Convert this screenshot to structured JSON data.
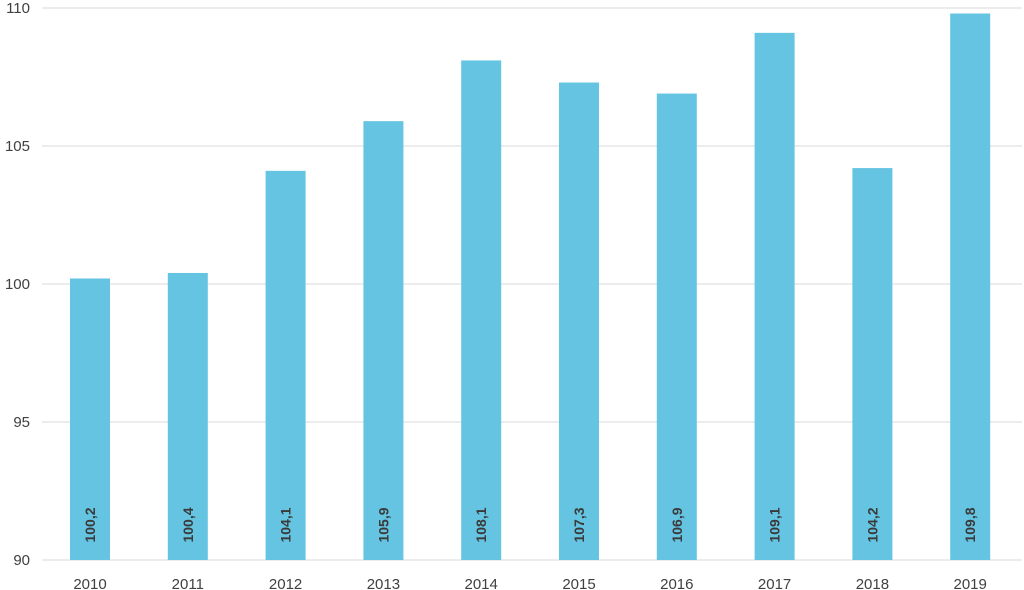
{
  "chart_data": {
    "type": "bar",
    "title": "",
    "xlabel": "",
    "ylabel": "",
    "categories": [
      "2010",
      "2011",
      "2012",
      "2013",
      "2014",
      "2015",
      "2016",
      "2017",
      "2018",
      "2019"
    ],
    "values": [
      100.2,
      100.4,
      104.1,
      105.9,
      108.1,
      107.3,
      106.9,
      109.1,
      104.2,
      109.8
    ],
    "data_labels": [
      "100,2",
      "100,4",
      "104,1",
      "105,9",
      "108,1",
      "107,3",
      "106,9",
      "109,1",
      "104,2",
      "109,8"
    ],
    "ylim": [
      90,
      110
    ],
    "yticks": [
      90,
      95,
      100,
      105,
      110
    ],
    "ytick_labels": [
      "90",
      "95",
      "100",
      "105",
      "110"
    ],
    "grid": true,
    "legend": "none",
    "bar_color": "#65c4e1"
  }
}
